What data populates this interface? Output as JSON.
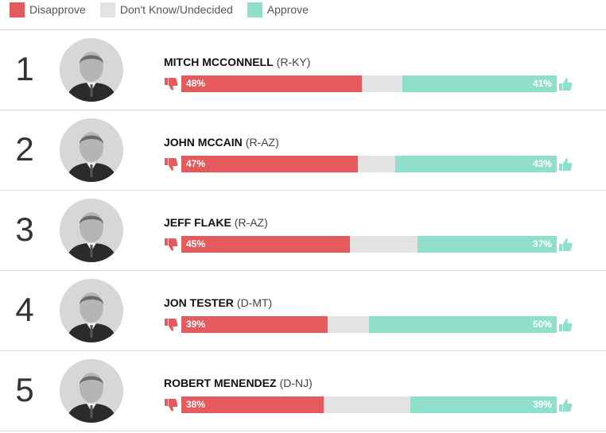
{
  "legend": {
    "disapprove": "Disapprove",
    "undecided": "Don't Know/Undecided",
    "approve": "Approve"
  },
  "colors": {
    "disapprove": "#e45a5d",
    "undecided": "#e3e3e3",
    "approve": "#8fdfcb"
  },
  "rows": [
    {
      "rank": "1",
      "name": "MITCH MCCONNELL",
      "party": "(R-KY)",
      "disapprove": 48,
      "approve": 41,
      "disapprove_label": "48%",
      "approve_label": "41%"
    },
    {
      "rank": "2",
      "name": "JOHN MCCAIN",
      "party": "(R-AZ)",
      "disapprove": 47,
      "approve": 43,
      "disapprove_label": "47%",
      "approve_label": "43%"
    },
    {
      "rank": "3",
      "name": "JEFF FLAKE",
      "party": "(R-AZ)",
      "disapprove": 45,
      "approve": 37,
      "disapprove_label": "45%",
      "approve_label": "37%"
    },
    {
      "rank": "4",
      "name": "JON TESTER",
      "party": "(D-MT)",
      "disapprove": 39,
      "approve": 50,
      "disapprove_label": "39%",
      "approve_label": "50%"
    },
    {
      "rank": "5",
      "name": "ROBERT MENENDEZ",
      "party": "(D-NJ)",
      "disapprove": 38,
      "approve": 39,
      "disapprove_label": "38%",
      "approve_label": "39%"
    }
  ]
}
